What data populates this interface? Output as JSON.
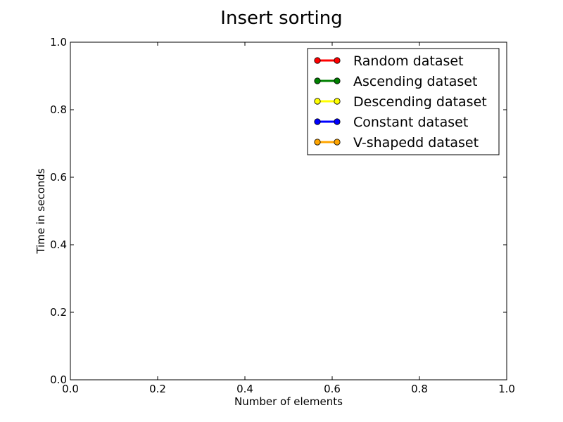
{
  "chart_data": {
    "type": "line",
    "title": "Insert sorting",
    "xlabel": "Number of elements",
    "ylabel": "Time in seconds",
    "xlim": [
      0.0,
      1.0
    ],
    "ylim": [
      0.0,
      1.0
    ],
    "xticks": [
      "0.0",
      "0.2",
      "0.4",
      "0.6",
      "0.8",
      "1.0"
    ],
    "yticks": [
      "0.0",
      "0.2",
      "0.4",
      "0.6",
      "0.8",
      "1.0"
    ],
    "grid": false,
    "legend_position": "top-right",
    "series": [
      {
        "name": "Random dataset",
        "color": "#ff0000",
        "x": [],
        "y": []
      },
      {
        "name": "Ascending dataset",
        "color": "#008000",
        "x": [],
        "y": []
      },
      {
        "name": "Descending dataset",
        "color": "#ffff00",
        "x": [],
        "y": []
      },
      {
        "name": "Constant dataset",
        "color": "#0000ff",
        "x": [],
        "y": []
      },
      {
        "name": "V-shapedd dataset",
        "color": "#ffa500",
        "x": [],
        "y": []
      }
    ]
  }
}
